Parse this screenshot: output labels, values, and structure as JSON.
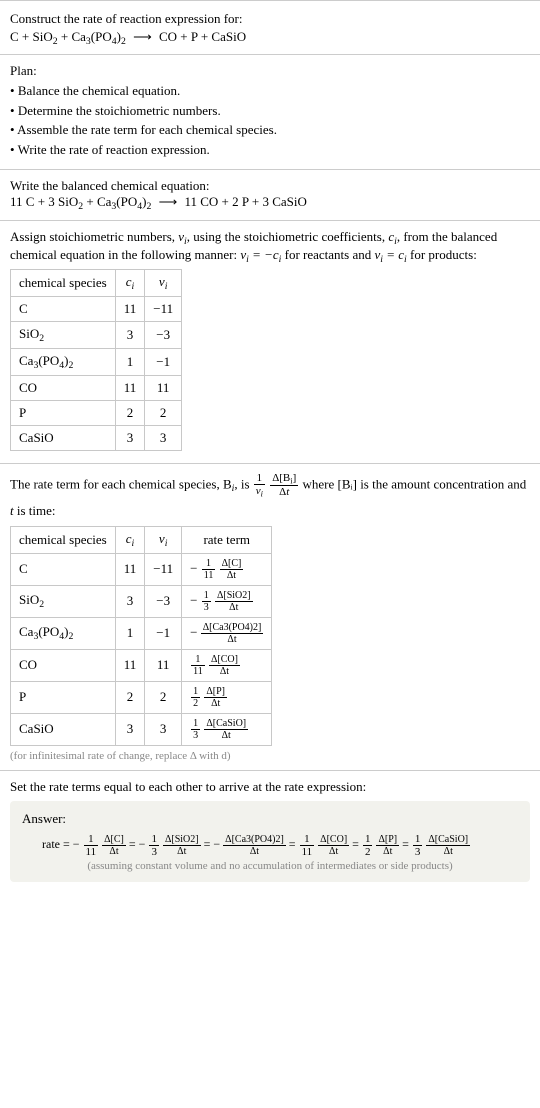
{
  "header": {
    "prompt": "Construct the rate of reaction expression for:",
    "equation_lhs_parts": [
      "C",
      " + ",
      "SiO",
      "2",
      " + ",
      "Ca",
      "3",
      "(PO",
      "4",
      ")",
      "2"
    ],
    "equation_rhs_parts": [
      "CO",
      " + ",
      "P",
      " + ",
      "CaSiO"
    ]
  },
  "plan": {
    "label": "Plan:",
    "items": [
      "Balance the chemical equation.",
      "Determine the stoichiometric numbers.",
      "Assemble the rate term for each chemical species.",
      "Write the rate of reaction expression."
    ]
  },
  "balanced": {
    "label": "Write the balanced chemical equation:",
    "lhs": "11 C + 3 SiO₂ + Ca₃(PO₄)₂",
    "rhs": "11 CO + 2 P + 3 CaSiO"
  },
  "stoich": {
    "intro_a": "Assign stoichiometric numbers, ",
    "nu": "ν",
    "sub_i": "i",
    "intro_b": ", using the stoichiometric coefficients, ",
    "c": "c",
    "intro_c": ", from the balanced chemical equation in the following manner: ",
    "eq1": "νᵢ = −cᵢ",
    "intro_d": " for reactants and ",
    "eq2": "νᵢ = cᵢ",
    "intro_e": " for products:",
    "headers": [
      "chemical species",
      "cᵢ",
      "νᵢ"
    ],
    "rows": [
      {
        "sp": "C",
        "c": "11",
        "v": "−11"
      },
      {
        "sp": "SiO₂",
        "c": "3",
        "v": "−3"
      },
      {
        "sp": "Ca₃(PO₄)₂",
        "c": "1",
        "v": "−1"
      },
      {
        "sp": "CO",
        "c": "11",
        "v": "11"
      },
      {
        "sp": "P",
        "c": "2",
        "v": "2"
      },
      {
        "sp": "CaSiO",
        "c": "3",
        "v": "3"
      }
    ]
  },
  "rate_intro": {
    "a": "The rate term for each chemical species, B",
    "b": ", is ",
    "frac1_num": "1",
    "frac1_den": "νᵢ",
    "frac2_num": "Δ[Bᵢ]",
    "frac2_den": "Δt",
    "c": " where [Bᵢ] is the amount concentration and ",
    "t": "t",
    "d": " is time:"
  },
  "rate_table": {
    "headers": [
      "chemical species",
      "cᵢ",
      "νᵢ",
      "rate term"
    ],
    "rows": [
      {
        "sp": "C",
        "c": "11",
        "v": "−11",
        "sign": "−",
        "fn": "1",
        "fd": "11",
        "dn": "Δ[C]",
        "dd": "Δt"
      },
      {
        "sp": "SiO₂",
        "c": "3",
        "v": "−3",
        "sign": "−",
        "fn": "1",
        "fd": "3",
        "dn": "Δ[SiO2]",
        "dd": "Δt"
      },
      {
        "sp": "Ca₃(PO₄)₂",
        "c": "1",
        "v": "−1",
        "sign": "−",
        "fn": "",
        "fd": "",
        "dn": "Δ[Ca3(PO4)2]",
        "dd": "Δt"
      },
      {
        "sp": "CO",
        "c": "11",
        "v": "11",
        "sign": "",
        "fn": "1",
        "fd": "11",
        "dn": "Δ[CO]",
        "dd": "Δt"
      },
      {
        "sp": "P",
        "c": "2",
        "v": "2",
        "sign": "",
        "fn": "1",
        "fd": "2",
        "dn": "Δ[P]",
        "dd": "Δt"
      },
      {
        "sp": "CaSiO",
        "c": "3",
        "v": "3",
        "sign": "",
        "fn": "1",
        "fd": "3",
        "dn": "Δ[CaSiO]",
        "dd": "Δt"
      }
    ],
    "footnote": "(for infinitesimal rate of change, replace Δ with d)"
  },
  "final": {
    "intro": "Set the rate terms equal to each other to arrive at the rate expression:",
    "answer_label": "Answer:",
    "rate_word": "rate = ",
    "terms": [
      {
        "sign": "−",
        "fn": "1",
        "fd": "11",
        "dn": "Δ[C]",
        "dd": "Δt"
      },
      {
        "sign": "−",
        "fn": "1",
        "fd": "3",
        "dn": "Δ[SiO2]",
        "dd": "Δt"
      },
      {
        "sign": "−",
        "fn": "",
        "fd": "",
        "dn": "Δ[Ca3(PO4)2]",
        "dd": "Δt"
      },
      {
        "sign": "",
        "fn": "1",
        "fd": "11",
        "dn": "Δ[CO]",
        "dd": "Δt"
      },
      {
        "sign": "",
        "fn": "1",
        "fd": "2",
        "dn": "Δ[P]",
        "dd": "Δt"
      },
      {
        "sign": "",
        "fn": "1",
        "fd": "3",
        "dn": "Δ[CaSiO]",
        "dd": "Δt"
      }
    ],
    "note": "(assuming constant volume and no accumulation of intermediates or side products)"
  }
}
